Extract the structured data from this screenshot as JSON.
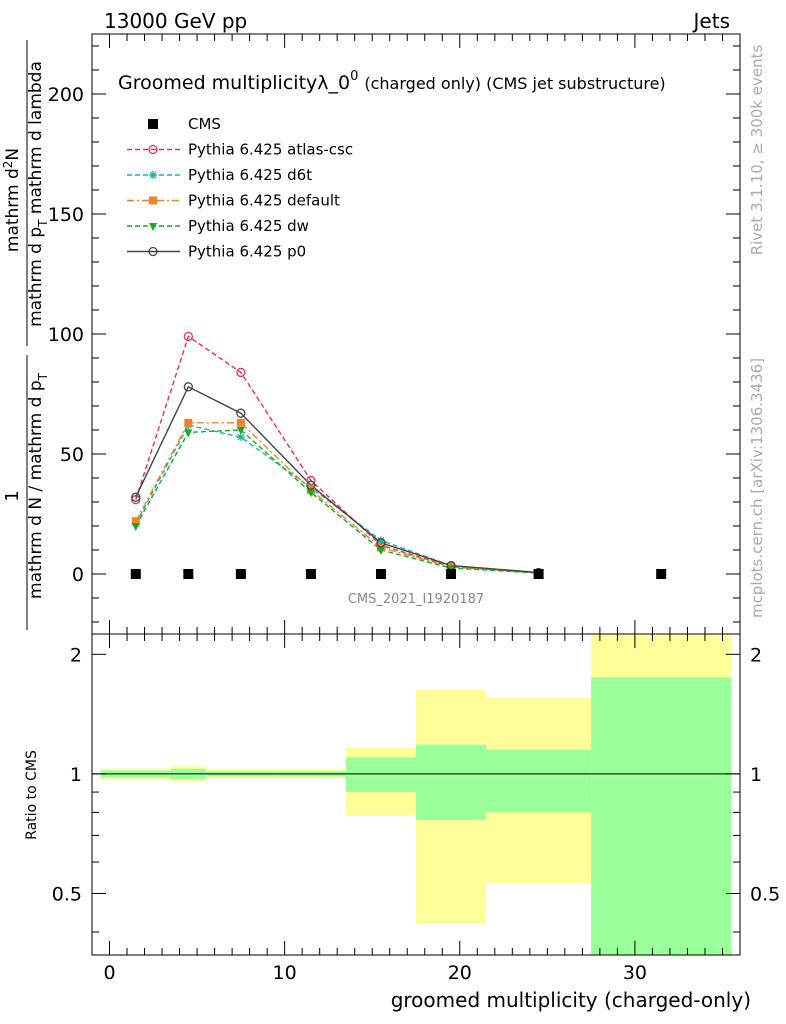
{
  "header": {
    "left": "13000 GeV pp",
    "right": "Jets"
  },
  "side": {
    "rivet": "Rivet 3.1.10, ≥ 300k events",
    "mcplots": "mcplots.cern.ch [arXiv:1306.3436]"
  },
  "chart_data": [
    {
      "type": "line",
      "title_main": "Groomed multiplicityλ_0",
      "title_sup": "0",
      "title_paren": "(charged only) (CMS jet substructure)",
      "ylabel_num": "mathrm d",
      "ylabel_num_sup": "2",
      "ylabel_num_end": "N",
      "ylabel_den": "mathrm d p",
      "ylabel_den_sub": "T",
      "ylabel_den_end": " mathrm d lambda",
      "ylabel_pref_num": "1",
      "ylabel_pref_den": "mathrm d N / mathrm d p",
      "ylabel_pref_den_sub": "T",
      "xlim": [
        -1,
        36
      ],
      "ylim": [
        -25,
        225
      ],
      "yticks": [
        0,
        50,
        100,
        150,
        200
      ],
      "watermark": "CMS_2021_I1920187",
      "legend_placement": "top-left",
      "series": [
        {
          "name": "CMS",
          "color": "#000000",
          "marker": "square",
          "line": "none",
          "x": [
            1.5,
            4.5,
            7.5,
            11.5,
            15.5,
            19.5,
            24.5,
            31.5
          ],
          "y": [
            0,
            0,
            0,
            0,
            0,
            0,
            0,
            0
          ]
        },
        {
          "name": "Pythia 6.425 atlas-csc",
          "color": "#e8304f",
          "marker": "open-circle",
          "line": "dashed",
          "x": [
            1.5,
            4.5,
            7.5,
            11.5,
            15.5,
            19.5,
            24.5
          ],
          "y": [
            31,
            99,
            84,
            39,
            12,
            3,
            0.5
          ]
        },
        {
          "name": "Pythia 6.425 d6t",
          "color": "#22b5a0",
          "marker": "star",
          "line": "dashed",
          "x": [
            1.5,
            4.5,
            7.5,
            11.5,
            15.5,
            19.5,
            24.5
          ],
          "y": [
            21,
            62,
            57,
            36,
            14,
            3.5,
            0.6
          ]
        },
        {
          "name": "Pythia 6.425 default",
          "color": "#f0832a",
          "marker": "filled-square",
          "line": "dashdot",
          "x": [
            1.5,
            4.5,
            7.5,
            11.5,
            15.5,
            19.5,
            24.5
          ],
          "y": [
            22,
            63,
            63,
            35,
            11,
            3,
            0.5
          ]
        },
        {
          "name": "Pythia 6.425 dw",
          "color": "#1aaa22",
          "marker": "down-triangle",
          "line": "dashed",
          "x": [
            1.5,
            4.5,
            7.5,
            11.5,
            15.5,
            19.5,
            24.5
          ],
          "y": [
            20,
            59,
            60,
            34,
            10,
            2.5,
            0.4
          ]
        },
        {
          "name": "Pythia 6.425 p0",
          "color": "#444444",
          "marker": "open-circle",
          "line": "solid",
          "x": [
            1.5,
            4.5,
            7.5,
            11.5,
            15.5,
            19.5,
            24.5
          ],
          "y": [
            32,
            78,
            67,
            37,
            13,
            3.5,
            0.6
          ]
        }
      ]
    },
    {
      "type": "area",
      "ylabel": "Ratio to CMS",
      "xlabel": "groomed multiplicity (charged-only)",
      "xlim": [
        -1,
        36
      ],
      "ylim": [
        0.35,
        2.25
      ],
      "xticks": [
        0,
        10,
        20,
        30
      ],
      "yticks": [
        0.5,
        1,
        2
      ],
      "ratio_line": 1,
      "colors": {
        "outer": "#ffff99",
        "inner": "#99ff99"
      },
      "bins": [
        {
          "lo": -0.5,
          "hi": 3.5,
          "inner": [
            0.98,
            1.02
          ],
          "outer": [
            0.97,
            1.03
          ]
        },
        {
          "lo": 3.5,
          "hi": 5.5,
          "inner": [
            0.97,
            1.03
          ],
          "outer": [
            0.955,
            1.045
          ]
        },
        {
          "lo": 5.5,
          "hi": 9.5,
          "inner": [
            0.985,
            1.015
          ],
          "outer": [
            0.975,
            1.025
          ]
        },
        {
          "lo": 9.5,
          "hi": 13.5,
          "inner": [
            0.985,
            1.015
          ],
          "outer": [
            0.975,
            1.025
          ]
        },
        {
          "lo": 13.5,
          "hi": 17.5,
          "inner": [
            0.9,
            1.1
          ],
          "outer": [
            0.785,
            1.165
          ]
        },
        {
          "lo": 17.5,
          "hi": 21.5,
          "inner": [
            0.765,
            1.185
          ],
          "outer": [
            0.42,
            1.63
          ]
        },
        {
          "lo": 21.5,
          "hi": 27.5,
          "inner": [
            0.8,
            1.15
          ],
          "outer": [
            0.53,
            1.56
          ]
        },
        {
          "lo": 27.5,
          "hi": 35.5,
          "inner": [
            0.35,
            1.75
          ],
          "outer": [
            0.35,
            2.24
          ]
        }
      ]
    }
  ]
}
